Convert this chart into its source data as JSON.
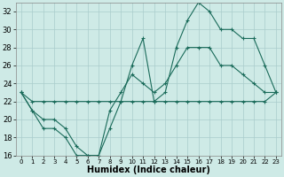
{
  "xlabel": "Humidex (Indice chaleur)",
  "background_color": "#ceeae6",
  "line_color": "#1a6b5a",
  "grid_color": "#aacccc",
  "xlim": [
    -0.5,
    23.5
  ],
  "ylim": [
    16,
    33
  ],
  "xticks": [
    0,
    1,
    2,
    3,
    4,
    5,
    6,
    7,
    8,
    9,
    10,
    11,
    12,
    13,
    14,
    15,
    16,
    17,
    18,
    19,
    20,
    21,
    22,
    23
  ],
  "yticks": [
    16,
    18,
    20,
    22,
    24,
    26,
    28,
    30,
    32
  ],
  "series": {
    "max": {
      "x": [
        0,
        1,
        2,
        3,
        4,
        5,
        6,
        7,
        8,
        9,
        10,
        11,
        12,
        13,
        14,
        15,
        16,
        17,
        18,
        19,
        20,
        21,
        22,
        23
      ],
      "y": [
        23,
        21,
        19,
        19,
        18,
        16,
        16,
        16,
        19,
        22,
        26,
        29,
        22,
        23,
        28,
        31,
        33,
        32,
        30,
        30,
        29,
        29,
        26,
        23
      ]
    },
    "mean": {
      "x": [
        0,
        1,
        2,
        3,
        4,
        5,
        6,
        7,
        8,
        9,
        10,
        11,
        12,
        13,
        14,
        15,
        16,
        17,
        18,
        19,
        20,
        21,
        22,
        23
      ],
      "y": [
        23,
        21,
        20,
        20,
        19,
        17,
        16,
        16,
        21,
        23,
        25,
        24,
        23,
        24,
        26,
        28,
        28,
        28,
        26,
        26,
        25,
        24,
        23,
        23
      ]
    },
    "min": {
      "x": [
        0,
        1,
        2,
        3,
        4,
        5,
        6,
        7,
        8,
        9,
        10,
        11,
        12,
        13,
        14,
        15,
        16,
        17,
        18,
        19,
        20,
        21,
        22,
        23
      ],
      "y": [
        23,
        22,
        22,
        22,
        22,
        22,
        22,
        22,
        22,
        22,
        22,
        22,
        22,
        22,
        22,
        22,
        22,
        22,
        22,
        22,
        22,
        22,
        22,
        23
      ]
    }
  }
}
